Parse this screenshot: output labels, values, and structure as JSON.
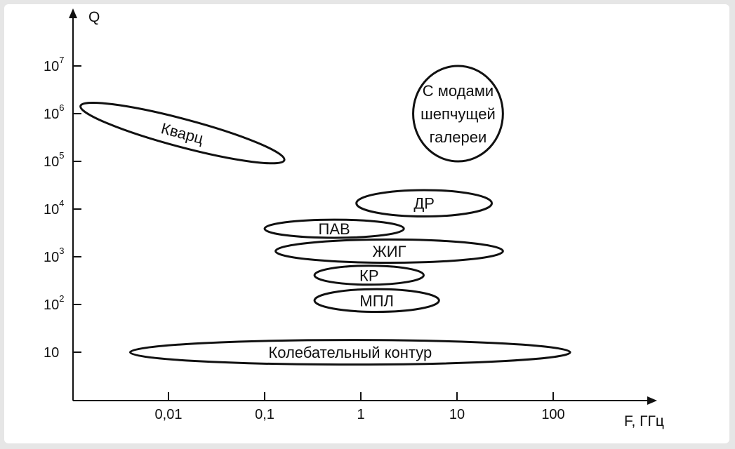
{
  "chart_data": {
    "type": "diagram",
    "x_axis": {
      "label": "F, ГГц",
      "scale": "log",
      "ticks": [
        {
          "value": 0.01,
          "label": "0,01"
        },
        {
          "value": 0.1,
          "label": "0,1"
        },
        {
          "value": 1,
          "label": "1"
        },
        {
          "value": 10,
          "label": "10"
        },
        {
          "value": 100,
          "label": "100"
        }
      ]
    },
    "y_axis": {
      "label": "Q",
      "scale": "log",
      "ticks": [
        {
          "value": 10,
          "base": "10",
          "exp": ""
        },
        {
          "value": 100,
          "base": "10",
          "exp": "2"
        },
        {
          "value": 1000,
          "base": "10",
          "exp": "3"
        },
        {
          "value": 10000,
          "base": "10",
          "exp": "4"
        },
        {
          "value": 100000,
          "base": "10",
          "exp": "5"
        },
        {
          "value": 1000000,
          "base": "10",
          "exp": "6"
        },
        {
          "value": 10000000,
          "base": "10",
          "exp": "7"
        }
      ]
    },
    "regions": [
      {
        "id": "quartz",
        "label": [
          "Кварц"
        ],
        "f_range": [
          0.0013,
          0.15
        ],
        "q_range": [
          110000,
          1400000
        ],
        "shape": "tilted"
      },
      {
        "id": "whispering-gallery",
        "label": [
          "С модами",
          "шепчущей",
          "галереи"
        ],
        "f_range": [
          3.5,
          30
        ],
        "q_range": [
          100000,
          10000000
        ],
        "shape": "ellipse"
      },
      {
        "id": "dr",
        "label": [
          "ДР"
        ],
        "f_range": [
          0.9,
          23
        ],
        "q_range": [
          7000,
          25000
        ],
        "shape": "ellipse"
      },
      {
        "id": "pav",
        "label": [
          "ПАВ"
        ],
        "f_range": [
          0.1,
          2.8
        ],
        "q_range": [
          2500,
          6000
        ],
        "shape": "ellipse"
      },
      {
        "id": "zhig",
        "label": [
          "ЖИГ"
        ],
        "f_range": [
          0.13,
          30
        ],
        "q_range": [
          750,
          2300
        ],
        "shape": "ellipse"
      },
      {
        "id": "kr",
        "label": [
          "КР"
        ],
        "f_range": [
          0.33,
          4.5
        ],
        "q_range": [
          260,
          650
        ],
        "shape": "ellipse"
      },
      {
        "id": "mpl",
        "label": [
          "МПЛ"
        ],
        "f_range": [
          0.33,
          6.5
        ],
        "q_range": [
          70,
          210
        ],
        "shape": "ellipse"
      },
      {
        "id": "lc-circuit",
        "label": [
          "Колебательный контур"
        ],
        "f_range": [
          0.004,
          150
        ],
        "q_range": [
          5.5,
          18
        ],
        "shape": "ellipse"
      }
    ]
  }
}
